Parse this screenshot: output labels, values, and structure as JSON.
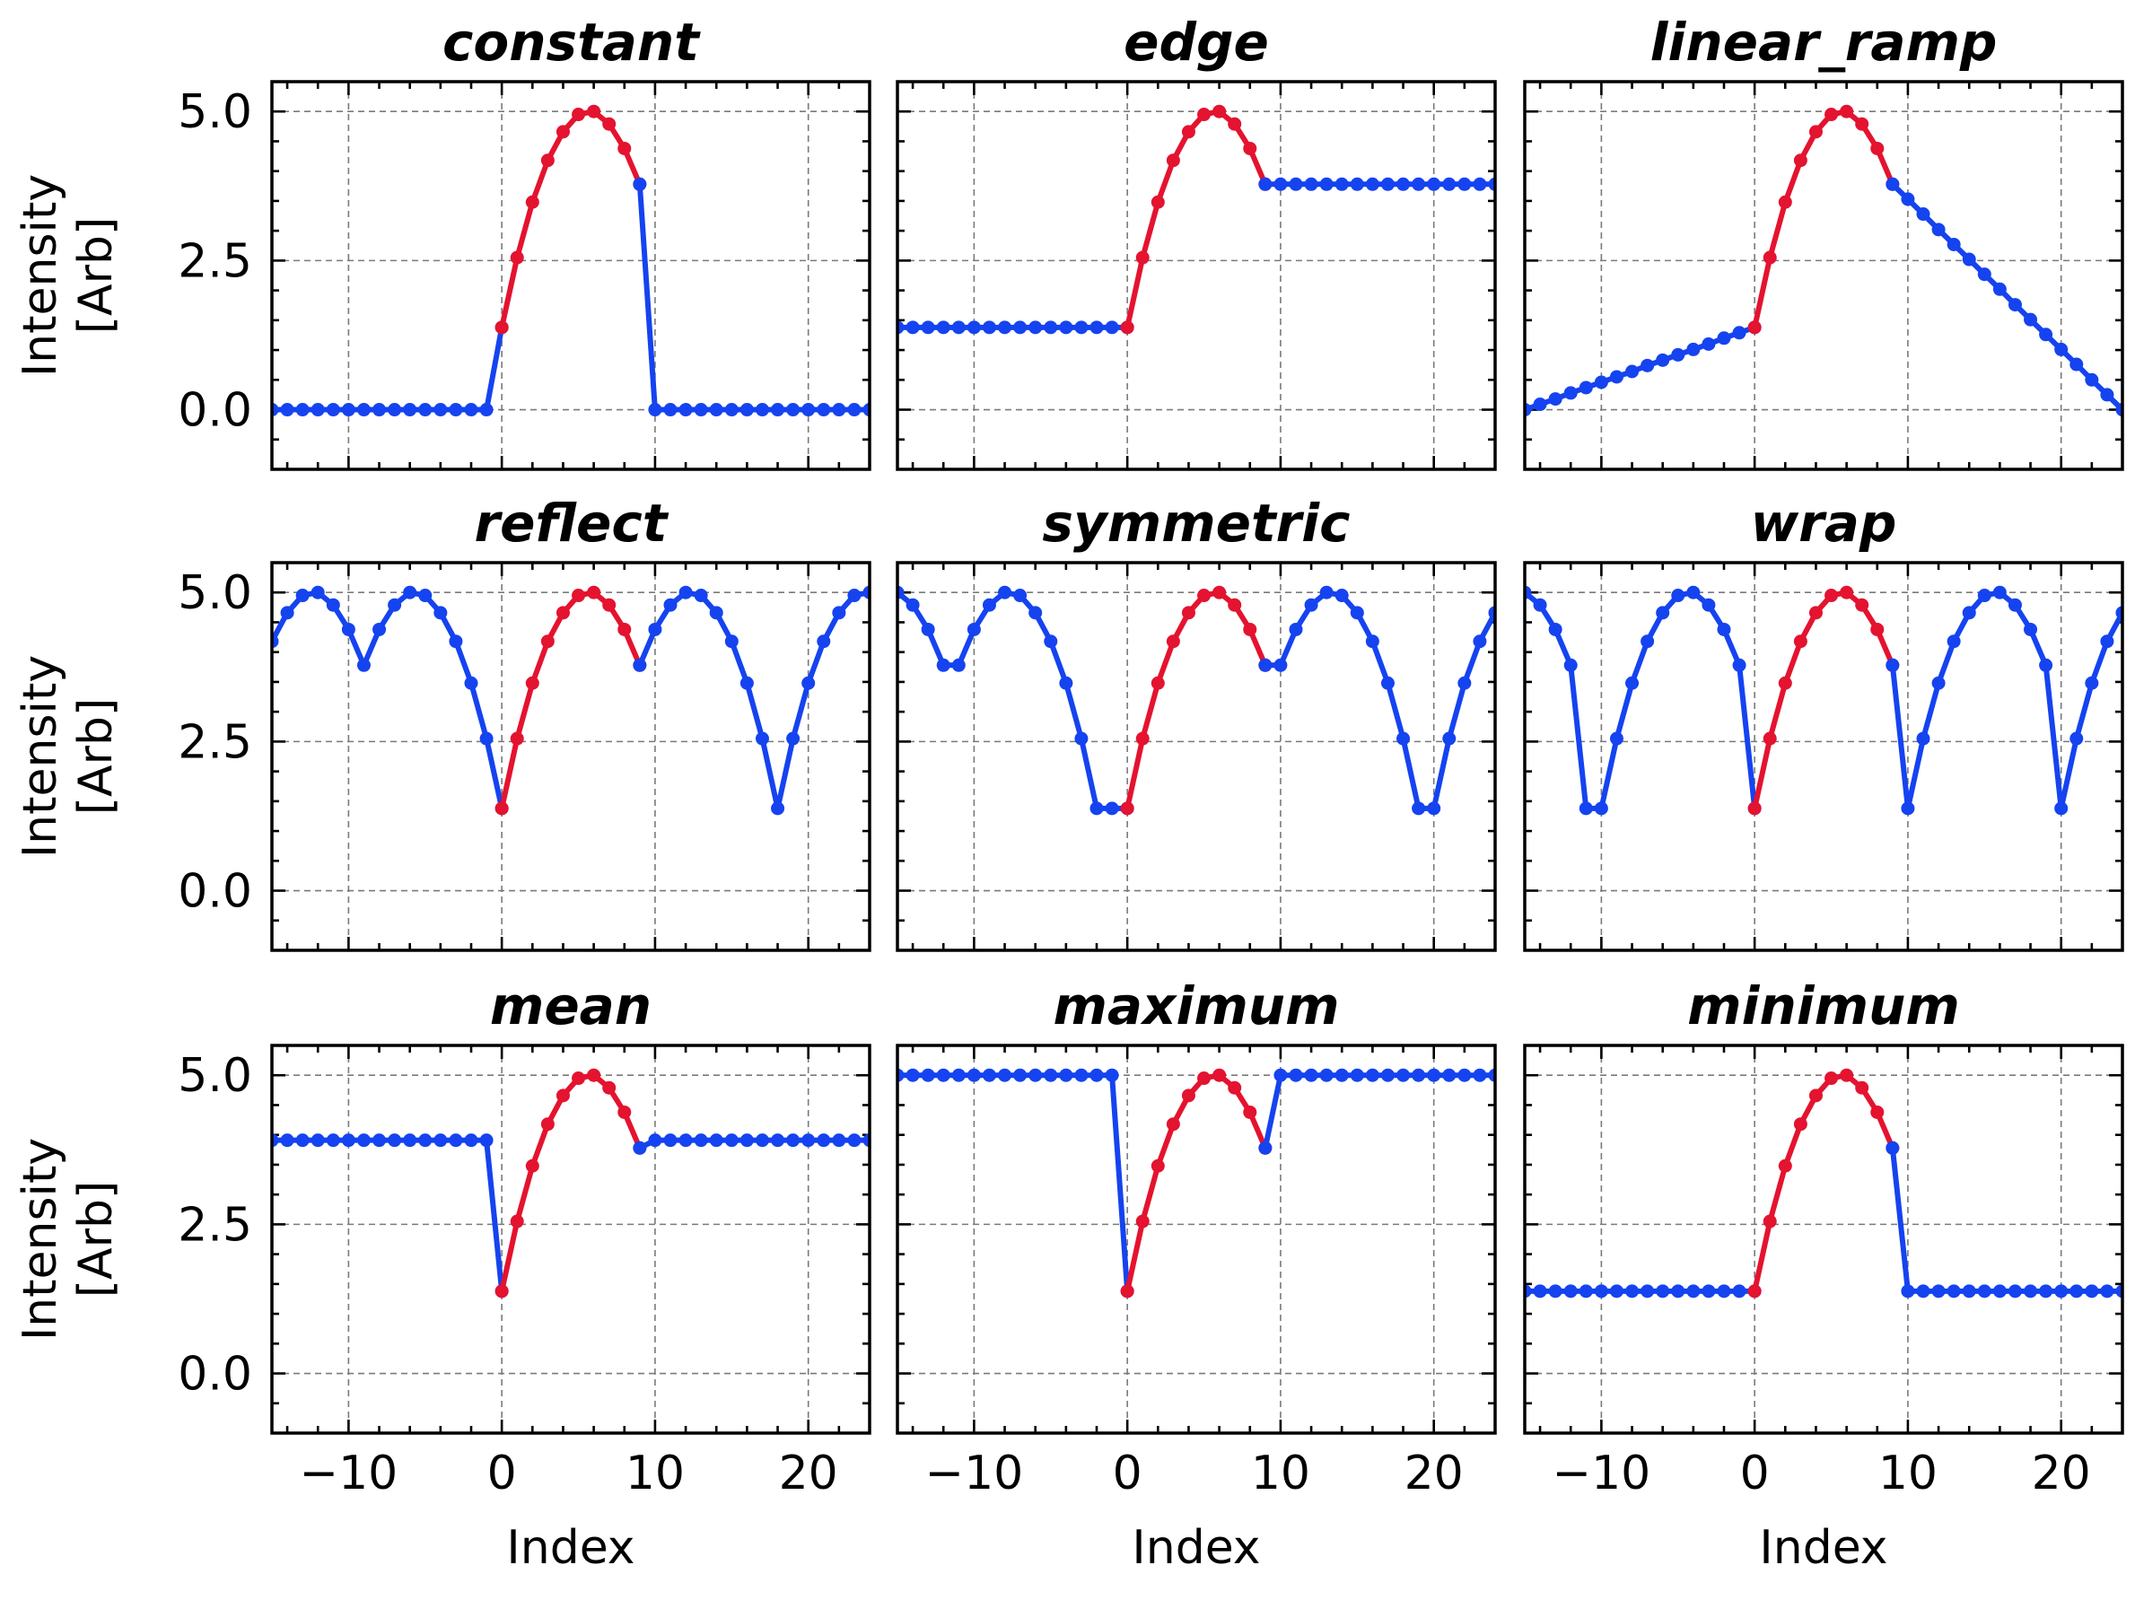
{
  "colors": {
    "padding": "#1543f0",
    "signal": "#e4132f"
  },
  "shared": {
    "ylabel_line1": "Intensity",
    "ylabel_line2": "[Arb]",
    "xlabel": "Index",
    "xlim": [
      -15,
      24
    ],
    "ylim": [
      -1,
      5.5
    ],
    "x_ticks": [
      -10,
      0,
      10,
      20
    ],
    "x_tick_labels": [
      "−10",
      "0",
      "10",
      "20"
    ],
    "y_ticks": [
      0,
      2.5,
      5
    ],
    "y_tick_labels": [
      "0.0",
      "2.5",
      "5.0"
    ],
    "grid": true
  },
  "chart_data": [
    {
      "type": "line",
      "title": "constant",
      "series": [
        {
          "role": "padding",
          "x": [
            -15,
            -14,
            -13,
            -12,
            -11,
            -10,
            -9,
            -8,
            -7,
            -6,
            -5,
            -4,
            -3,
            -2,
            -1,
            0
          ],
          "y": [
            0,
            0,
            0,
            0,
            0,
            0,
            0,
            0,
            0,
            0,
            0,
            0,
            0,
            0,
            0,
            1.38
          ]
        },
        {
          "role": "signal",
          "x": [
            0,
            1,
            2,
            3,
            4,
            5,
            6,
            7,
            8,
            9
          ],
          "y": [
            1.38,
            2.55,
            3.48,
            4.18,
            4.66,
            4.95,
            5.0,
            4.79,
            4.38,
            3.78
          ]
        },
        {
          "role": "padding",
          "x": [
            9,
            10,
            11,
            12,
            13,
            14,
            15,
            16,
            17,
            18,
            19,
            20,
            21,
            22,
            23,
            24
          ],
          "y": [
            3.78,
            0,
            0,
            0,
            0,
            0,
            0,
            0,
            0,
            0,
            0,
            0,
            0,
            0,
            0,
            0
          ]
        }
      ]
    },
    {
      "type": "line",
      "title": "edge",
      "series": [
        {
          "role": "padding",
          "x": [
            -15,
            -14,
            -13,
            -12,
            -11,
            -10,
            -9,
            -8,
            -7,
            -6,
            -5,
            -4,
            -3,
            -2,
            -1,
            0
          ],
          "y": [
            1.38,
            1.38,
            1.38,
            1.38,
            1.38,
            1.38,
            1.38,
            1.38,
            1.38,
            1.38,
            1.38,
            1.38,
            1.38,
            1.38,
            1.38,
            1.38
          ]
        },
        {
          "role": "signal",
          "x": [
            0,
            1,
            2,
            3,
            4,
            5,
            6,
            7,
            8,
            9
          ],
          "y": [
            1.38,
            2.55,
            3.48,
            4.18,
            4.66,
            4.95,
            5.0,
            4.79,
            4.38,
            3.78
          ]
        },
        {
          "role": "padding",
          "x": [
            9,
            10,
            11,
            12,
            13,
            14,
            15,
            16,
            17,
            18,
            19,
            20,
            21,
            22,
            23,
            24
          ],
          "y": [
            3.78,
            3.78,
            3.78,
            3.78,
            3.78,
            3.78,
            3.78,
            3.78,
            3.78,
            3.78,
            3.78,
            3.78,
            3.78,
            3.78,
            3.78,
            3.78
          ]
        }
      ]
    },
    {
      "type": "line",
      "title": "linear_ramp",
      "series": [
        {
          "role": "padding",
          "x": [
            -15,
            -14,
            -13,
            -12,
            -11,
            -10,
            -9,
            -8,
            -7,
            -6,
            -5,
            -4,
            -3,
            -2,
            -1,
            0
          ],
          "y": [
            0,
            0.09,
            0.18,
            0.28,
            0.37,
            0.46,
            0.55,
            0.64,
            0.74,
            0.83,
            0.92,
            1.01,
            1.1,
            1.2,
            1.29,
            1.38
          ]
        },
        {
          "role": "signal",
          "x": [
            0,
            1,
            2,
            3,
            4,
            5,
            6,
            7,
            8,
            9
          ],
          "y": [
            1.38,
            2.55,
            3.48,
            4.18,
            4.66,
            4.95,
            5.0,
            4.79,
            4.38,
            3.78
          ]
        },
        {
          "role": "padding",
          "x": [
            9,
            10,
            11,
            12,
            13,
            14,
            15,
            16,
            17,
            18,
            19,
            20,
            21,
            22,
            23,
            24
          ],
          "y": [
            3.78,
            3.53,
            3.28,
            3.02,
            2.77,
            2.52,
            2.27,
            2.02,
            1.76,
            1.51,
            1.26,
            1.01,
            0.76,
            0.5,
            0.25,
            0
          ]
        }
      ]
    },
    {
      "type": "line",
      "title": "reflect",
      "series": [
        {
          "role": "padding",
          "x": [
            -15,
            -14,
            -13,
            -12,
            -11,
            -10,
            -9,
            -8,
            -7,
            -6,
            -5,
            -4,
            -3,
            -2,
            -1,
            0
          ],
          "y": [
            4.18,
            4.66,
            4.95,
            5.0,
            4.79,
            4.38,
            3.78,
            4.38,
            4.79,
            5.0,
            4.95,
            4.66,
            4.18,
            3.48,
            2.55,
            1.38
          ]
        },
        {
          "role": "signal",
          "x": [
            0,
            1,
            2,
            3,
            4,
            5,
            6,
            7,
            8,
            9
          ],
          "y": [
            1.38,
            2.55,
            3.48,
            4.18,
            4.66,
            4.95,
            5.0,
            4.79,
            4.38,
            3.78
          ]
        },
        {
          "role": "padding",
          "x": [
            9,
            10,
            11,
            12,
            13,
            14,
            15,
            16,
            17,
            18,
            19,
            20,
            21,
            22,
            23,
            24
          ],
          "y": [
            3.78,
            4.38,
            4.79,
            5.0,
            4.95,
            4.66,
            4.18,
            3.48,
            2.55,
            1.38,
            2.55,
            3.48,
            4.18,
            4.66,
            4.95,
            5.0
          ]
        }
      ]
    },
    {
      "type": "line",
      "title": "symmetric",
      "series": [
        {
          "role": "padding",
          "x": [
            -15,
            -14,
            -13,
            -12,
            -11,
            -10,
            -9,
            -8,
            -7,
            -6,
            -5,
            -4,
            -3,
            -2,
            -1,
            0
          ],
          "y": [
            5.0,
            4.79,
            4.38,
            3.78,
            3.78,
            4.38,
            4.79,
            5.0,
            4.95,
            4.66,
            4.18,
            3.48,
            2.55,
            1.38,
            1.38,
            1.38
          ]
        },
        {
          "role": "signal",
          "x": [
            0,
            1,
            2,
            3,
            4,
            5,
            6,
            7,
            8,
            9
          ],
          "y": [
            1.38,
            2.55,
            3.48,
            4.18,
            4.66,
            4.95,
            5.0,
            4.79,
            4.38,
            3.78
          ]
        },
        {
          "role": "padding",
          "x": [
            9,
            10,
            11,
            12,
            13,
            14,
            15,
            16,
            17,
            18,
            19,
            20,
            21,
            22,
            23,
            24
          ],
          "y": [
            3.78,
            3.78,
            4.38,
            4.79,
            5.0,
            4.95,
            4.66,
            4.18,
            3.48,
            2.55,
            1.38,
            1.38,
            2.55,
            3.48,
            4.18,
            4.66
          ]
        }
      ]
    },
    {
      "type": "line",
      "title": "wrap",
      "series": [
        {
          "role": "padding",
          "x": [
            -15,
            -14,
            -13,
            -12,
            -11,
            -10,
            -9,
            -8,
            -7,
            -6,
            -5,
            -4,
            -3,
            -2,
            -1,
            0
          ],
          "y": [
            5.0,
            4.79,
            4.38,
            3.78,
            1.38,
            1.38,
            2.55,
            3.48,
            4.18,
            4.66,
            4.95,
            5.0,
            4.79,
            4.38,
            3.78,
            1.38
          ]
        },
        {
          "role": "signal",
          "x": [
            0,
            1,
            2,
            3,
            4,
            5,
            6,
            7,
            8,
            9
          ],
          "y": [
            1.38,
            2.55,
            3.48,
            4.18,
            4.66,
            4.95,
            5.0,
            4.79,
            4.38,
            3.78
          ]
        },
        {
          "role": "padding",
          "x": [
            9,
            10,
            11,
            12,
            13,
            14,
            15,
            16,
            17,
            18,
            19,
            20,
            21,
            22,
            23,
            24
          ],
          "y": [
            3.78,
            1.38,
            2.55,
            3.48,
            4.18,
            4.66,
            4.95,
            5.0,
            4.79,
            4.38,
            3.78,
            1.38,
            2.55,
            3.48,
            4.18,
            4.66
          ]
        }
      ]
    },
    {
      "type": "line",
      "title": "mean",
      "series": [
        {
          "role": "padding",
          "x": [
            -15,
            -14,
            -13,
            -12,
            -11,
            -10,
            -9,
            -8,
            -7,
            -6,
            -5,
            -4,
            -3,
            -2,
            -1,
            0
          ],
          "y": [
            3.91,
            3.91,
            3.91,
            3.91,
            3.91,
            3.91,
            3.91,
            3.91,
            3.91,
            3.91,
            3.91,
            3.91,
            3.91,
            3.91,
            3.91,
            1.38
          ]
        },
        {
          "role": "signal",
          "x": [
            0,
            1,
            2,
            3,
            4,
            5,
            6,
            7,
            8,
            9
          ],
          "y": [
            1.38,
            2.55,
            3.48,
            4.18,
            4.66,
            4.95,
            5.0,
            4.79,
            4.38,
            3.78
          ]
        },
        {
          "role": "padding",
          "x": [
            9,
            10,
            11,
            12,
            13,
            14,
            15,
            16,
            17,
            18,
            19,
            20,
            21,
            22,
            23,
            24
          ],
          "y": [
            3.78,
            3.91,
            3.91,
            3.91,
            3.91,
            3.91,
            3.91,
            3.91,
            3.91,
            3.91,
            3.91,
            3.91,
            3.91,
            3.91,
            3.91,
            3.91
          ]
        }
      ]
    },
    {
      "type": "line",
      "title": "maximum",
      "series": [
        {
          "role": "padding",
          "x": [
            -15,
            -14,
            -13,
            -12,
            -11,
            -10,
            -9,
            -8,
            -7,
            -6,
            -5,
            -4,
            -3,
            -2,
            -1,
            0
          ],
          "y": [
            5.0,
            5.0,
            5.0,
            5.0,
            5.0,
            5.0,
            5.0,
            5.0,
            5.0,
            5.0,
            5.0,
            5.0,
            5.0,
            5.0,
            5.0,
            1.38
          ]
        },
        {
          "role": "signal",
          "x": [
            0,
            1,
            2,
            3,
            4,
            5,
            6,
            7,
            8,
            9
          ],
          "y": [
            1.38,
            2.55,
            3.48,
            4.18,
            4.66,
            4.95,
            5.0,
            4.79,
            4.38,
            3.78
          ]
        },
        {
          "role": "padding",
          "x": [
            9,
            10,
            11,
            12,
            13,
            14,
            15,
            16,
            17,
            18,
            19,
            20,
            21,
            22,
            23,
            24
          ],
          "y": [
            3.78,
            5.0,
            5.0,
            5.0,
            5.0,
            5.0,
            5.0,
            5.0,
            5.0,
            5.0,
            5.0,
            5.0,
            5.0,
            5.0,
            5.0,
            5.0
          ]
        }
      ]
    },
    {
      "type": "line",
      "title": "minimum",
      "series": [
        {
          "role": "padding",
          "x": [
            -15,
            -14,
            -13,
            -12,
            -11,
            -10,
            -9,
            -8,
            -7,
            -6,
            -5,
            -4,
            -3,
            -2,
            -1,
            0
          ],
          "y": [
            1.38,
            1.38,
            1.38,
            1.38,
            1.38,
            1.38,
            1.38,
            1.38,
            1.38,
            1.38,
            1.38,
            1.38,
            1.38,
            1.38,
            1.38,
            1.38
          ]
        },
        {
          "role": "signal",
          "x": [
            0,
            1,
            2,
            3,
            4,
            5,
            6,
            7,
            8,
            9
          ],
          "y": [
            1.38,
            2.55,
            3.48,
            4.18,
            4.66,
            4.95,
            5.0,
            4.79,
            4.38,
            3.78
          ]
        },
        {
          "role": "padding",
          "x": [
            9,
            10,
            11,
            12,
            13,
            14,
            15,
            16,
            17,
            18,
            19,
            20,
            21,
            22,
            23,
            24
          ],
          "y": [
            3.78,
            1.38,
            1.38,
            1.38,
            1.38,
            1.38,
            1.38,
            1.38,
            1.38,
            1.38,
            1.38,
            1.38,
            1.38,
            1.38,
            1.38,
            1.38
          ]
        }
      ]
    }
  ]
}
